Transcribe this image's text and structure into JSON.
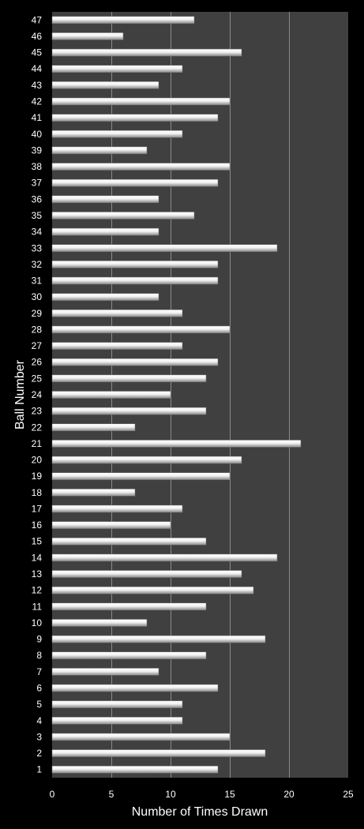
{
  "chart_data": {
    "type": "bar",
    "orientation": "horizontal",
    "xlabel": "Number of Times Drawn",
    "ylabel": "Ball Number",
    "xlim": [
      0,
      25
    ],
    "xticks": [
      0,
      5,
      10,
      15,
      20,
      25
    ],
    "grid": true,
    "categories": [
      "1",
      "2",
      "3",
      "4",
      "5",
      "6",
      "7",
      "8",
      "9",
      "10",
      "11",
      "12",
      "13",
      "14",
      "15",
      "16",
      "17",
      "18",
      "19",
      "20",
      "21",
      "22",
      "23",
      "24",
      "25",
      "26",
      "27",
      "28",
      "29",
      "30",
      "31",
      "32",
      "33",
      "34",
      "35",
      "36",
      "37",
      "38",
      "39",
      "40",
      "41",
      "42",
      "43",
      "44",
      "45",
      "46",
      "47"
    ],
    "values": [
      14,
      18,
      15,
      11,
      11,
      14,
      9,
      13,
      18,
      8,
      13,
      17,
      16,
      19,
      13,
      10,
      11,
      7,
      15,
      16,
      21,
      7,
      13,
      10,
      13,
      14,
      11,
      15,
      11,
      9,
      14,
      14,
      19,
      9,
      12,
      9,
      14,
      15,
      8,
      11,
      14,
      15,
      9,
      11,
      16,
      6,
      12
    ]
  },
  "colors": {
    "background": "#000000",
    "plot_area": "#404040",
    "gridline": "#8a8a8a",
    "bar_light": "#ffffff",
    "bar_dark": "#8c8c8c",
    "text": "#ffffff"
  }
}
